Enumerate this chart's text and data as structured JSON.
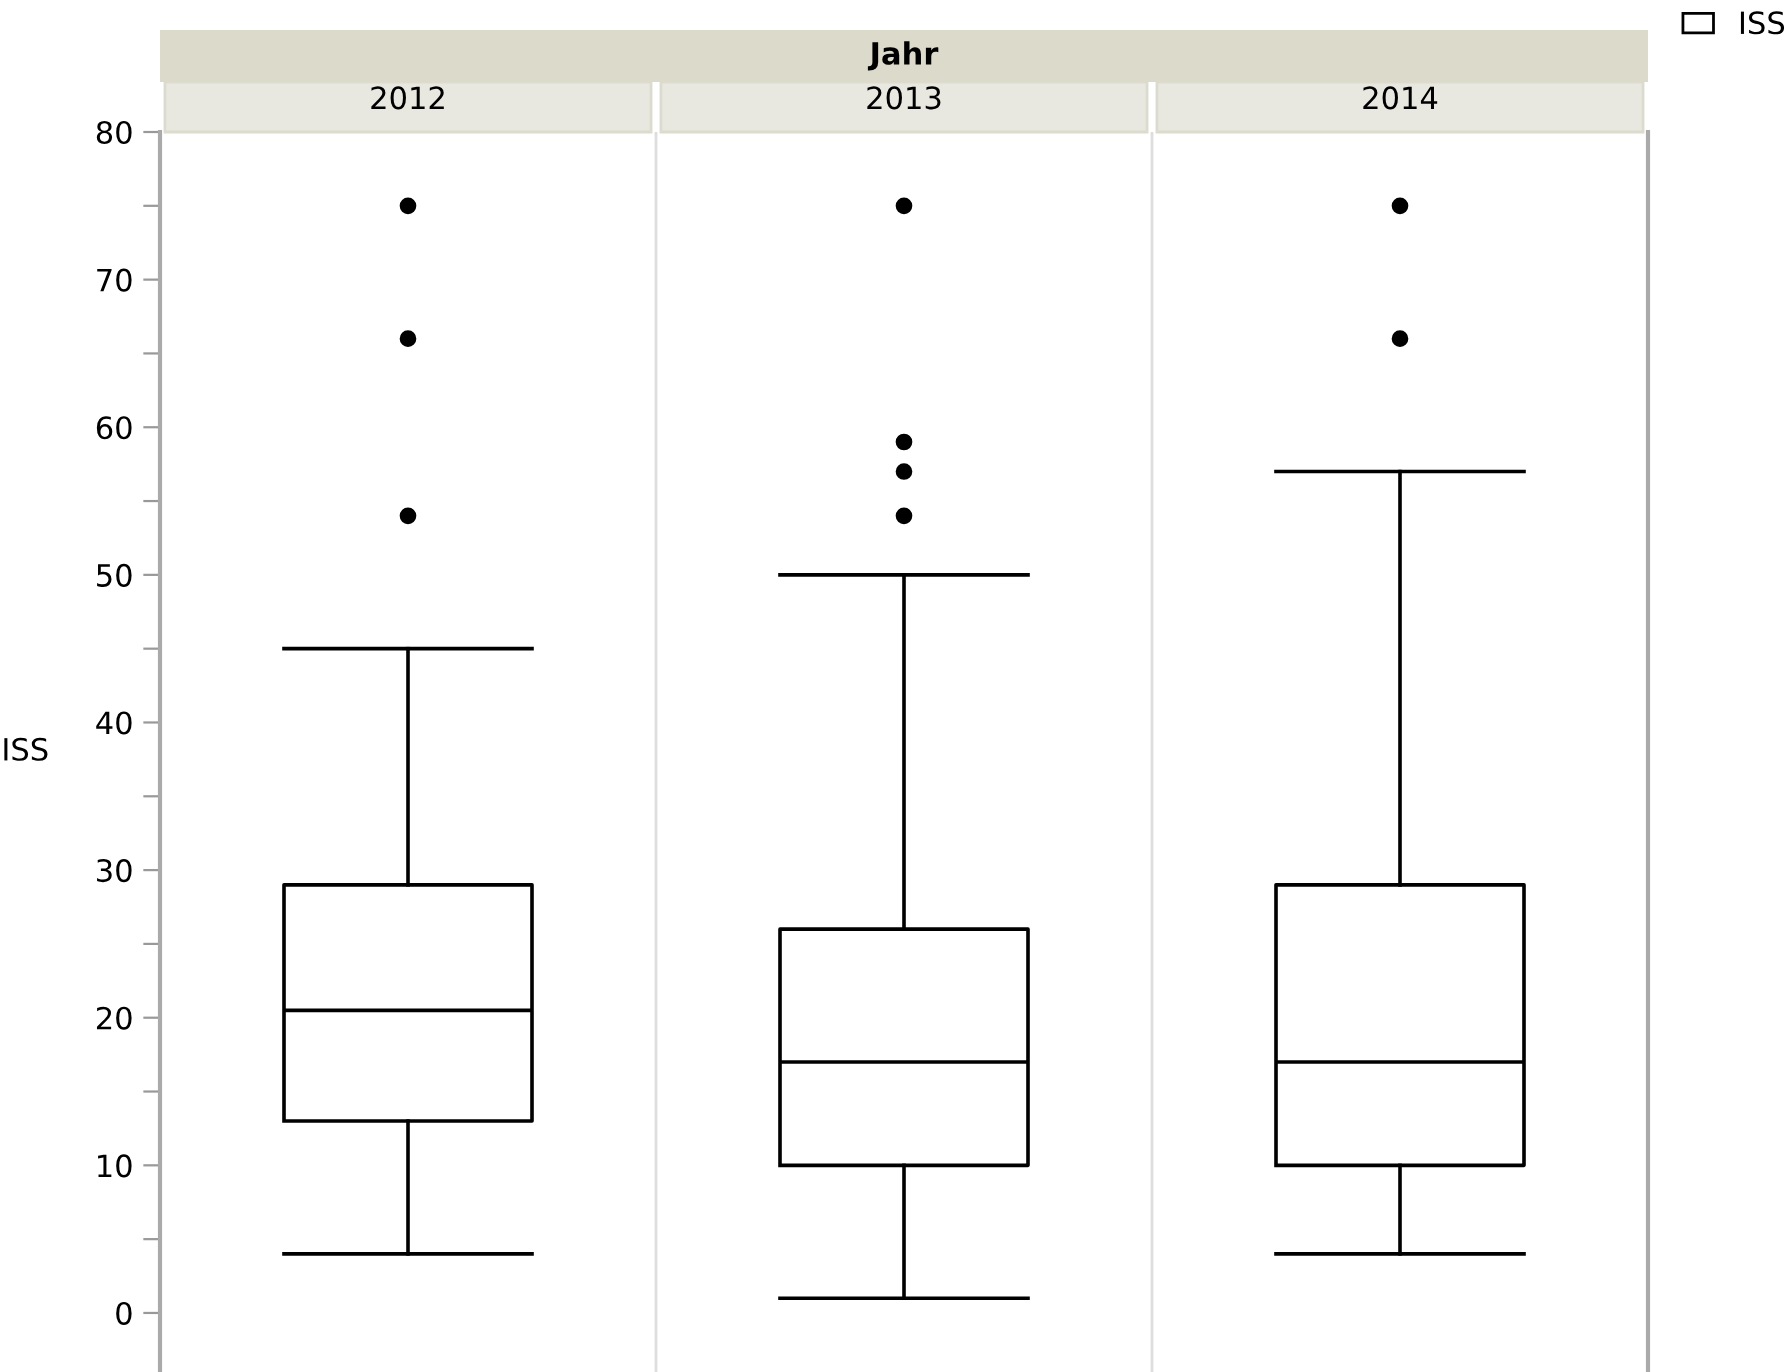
{
  "chart_data": {
    "type": "box",
    "xlabel": "Jahr",
    "ylabel": "ISS",
    "categories": [
      "2012",
      "2013",
      "2014"
    ],
    "series": [
      {
        "name": "ISS",
        "color": "#000000",
        "boxes": [
          {
            "low": 4,
            "q1": 13,
            "median": 20.5,
            "q3": 29,
            "high": 45,
            "outliers": [
              54,
              66,
              75
            ]
          },
          {
            "low": 1,
            "q1": 10,
            "median": 17,
            "q3": 26,
            "high": 50,
            "outliers": [
              54,
              57,
              59,
              75
            ]
          },
          {
            "low": 4,
            "q1": 10,
            "median": 17,
            "q3": 29,
            "high": 57,
            "outliers": [
              66,
              75
            ]
          }
        ]
      }
    ],
    "ylim": [
      -4,
      80
    ],
    "yticks": [
      0,
      {
        "value": 5,
        "label": null
      },
      10,
      {
        "value": 15,
        "label": null
      },
      20,
      {
        "value": 25,
        "label": null
      },
      30,
      {
        "value": 35,
        "label": null
      },
      40,
      {
        "value": 45,
        "label": null
      },
      50,
      {
        "value": 55,
        "label": null
      },
      60,
      {
        "value": 65,
        "label": null
      },
      70,
      {
        "value": 75,
        "label": null
      },
      80
    ],
    "grid": false,
    "legend": "top right"
  }
}
